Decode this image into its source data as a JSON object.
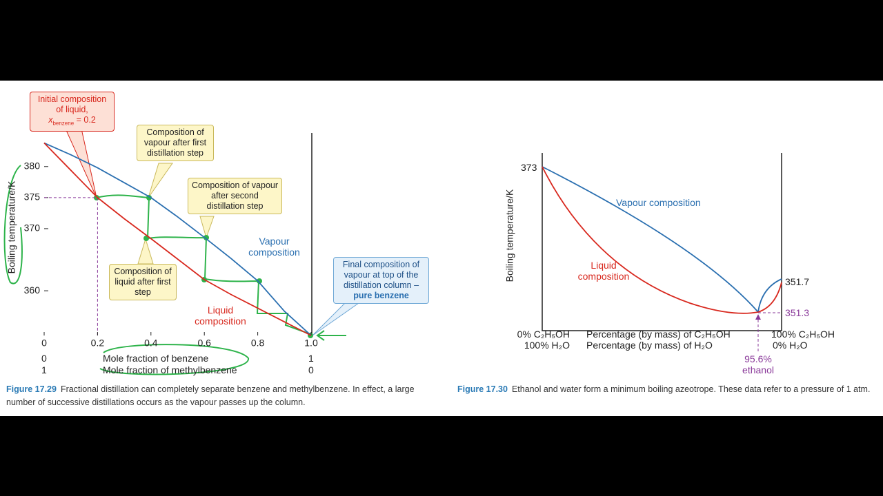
{
  "chart_data": {
    "type": "line",
    "y_label": "Boiling temperature/K",
    "x": [
      0,
      0.1,
      0.2,
      0.3,
      0.4,
      0.5,
      0.6,
      0.7,
      0.8,
      0.9,
      1
    ],
    "series": [
      {
        "name": "Vapour composition",
        "color": "#2a6fb0",
        "values": [
          383.8,
          381.9,
          379.8,
          377.4,
          375,
          371.9,
          368.6,
          365.2,
          361.6,
          356.7,
          352.8
        ]
      },
      {
        "name": "Liquid composition",
        "color": "#d8281e",
        "values": [
          383.8,
          379.4,
          375,
          371.6,
          368.4,
          365.1,
          361.8,
          359.4,
          357.2,
          355,
          352.8
        ]
      }
    ],
    "xlim": [
      0,
      1
    ],
    "xticks": [
      0,
      0.2,
      0.4,
      0.6,
      0.8,
      {
        "value": 1,
        "label": "1.0"
      }
    ],
    "ylim": [
      352.8,
      385.3
    ],
    "yticks": [
      360,
      370,
      375,
      380
    ],
    "x_label_rows": [
      {
        "left": "0",
        "label": "Mole fraction of benzene",
        "right": "1"
      },
      {
        "left": "1",
        "label": "Mole fraction of methylbenzene",
        "right": "0"
      }
    ],
    "annotations": {
      "initial": {
        "text": "Initial composition of liquid,",
        "var": "x",
        "sub": "benzene",
        "eq": "= 0.2"
      },
      "vapour_first": "Composition of vapour after first distillation step",
      "vapour_second": "Composition of vapour after second distillation step",
      "liquid_first": "Composition of liquid after first step",
      "final": {
        "text": "Final composition of vapour at top of the distillation column –",
        "bold": "pure benzene"
      }
    },
    "caption": {
      "label": "Figure 17.29",
      "text": "Fractional distillation can completely separate benzene and methylbenzene. In effect, a large number of successive distillations occurs as the vapour passes up the column."
    }
  },
  "figure_2": {
    "y_label": "Boiling temperature/K",
    "vapour_label": "Vapour composition",
    "liquid_label": "Liquid composition",
    "top_left": "373",
    "right_end": "351.7",
    "azeotrope_temp": "351.3",
    "left_labels": [
      "0% C₂H₅OH",
      "100% H₂O"
    ],
    "axis_labels": [
      "Percentage (by mass) of C₂H₅OH",
      "Percentage (by mass) of H₂O"
    ],
    "right_labels": [
      "100% C₂H₅OH",
      "0% H₂O"
    ],
    "azeotrope": [
      "95.6%",
      "ethanol"
    ],
    "caption": {
      "label": "Figure 17.30",
      "text": "Ethanol and water form a minimum boiling azeotrope. These data refer to a pressure of 1 atm."
    }
  }
}
